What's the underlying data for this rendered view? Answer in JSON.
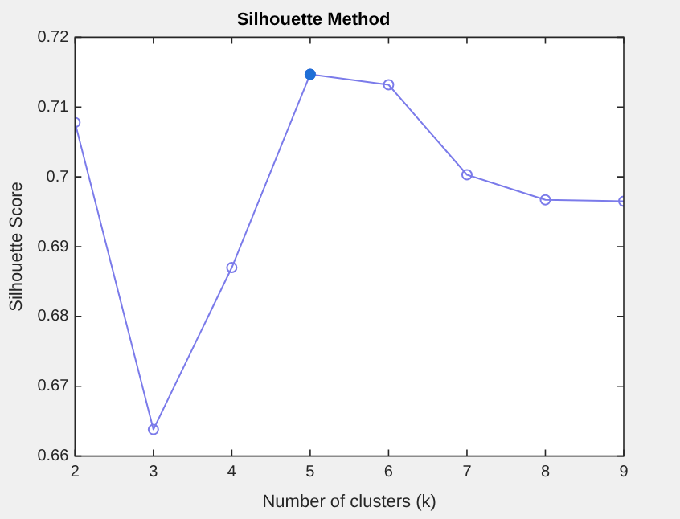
{
  "chart_data": {
    "type": "line",
    "title": "Silhouette Method",
    "xlabel": "Number of clusters (k)",
    "ylabel": "Silhouette Score",
    "x": [
      2,
      3,
      4,
      5,
      6,
      7,
      8,
      9
    ],
    "series": [
      {
        "color": "#7b7bea",
        "values": [
          0.7078,
          0.6638,
          0.687,
          0.7147,
          0.7132,
          0.7003,
          0.6967,
          0.6965
        ]
      },
      {
        "type": "scatter",
        "color": "#1f6fd6",
        "x": [
          5
        ],
        "values": [
          0.7147
        ]
      }
    ],
    "xlim": [
      2,
      9
    ],
    "xticks": [
      2,
      3,
      4,
      5,
      6,
      7,
      8,
      9
    ],
    "ylim": [
      0.66,
      0.72
    ],
    "yticks": [
      0.66,
      0.67,
      0.68,
      0.69,
      0.7,
      0.71,
      0.72
    ],
    "marker": "circle",
    "line_style": "solid",
    "grid": false,
    "legend": false
  }
}
